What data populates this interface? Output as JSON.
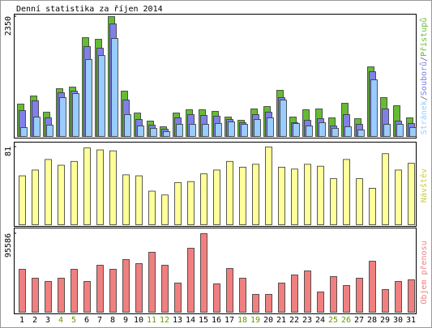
{
  "chart_data": [
    {
      "type": "bar",
      "title": "Denní statistika za říjen 2014",
      "ylim": [
        0,
        2350
      ],
      "yticks": [
        2350
      ],
      "legend_separator": "/",
      "series": [
        {
          "name": "Stránek",
          "color": "#99ccff",
          "values": [
            175,
            380,
            222,
            762,
            841,
            1508,
            1587,
            1921,
            429,
            206,
            159,
            95,
            238,
            238,
            238,
            254,
            286,
            238,
            333,
            365,
            714,
            254,
            206,
            270,
            159,
            190,
            127,
            1111,
            238,
            238,
            175
          ]
        },
        {
          "name": "Souborů",
          "color": "#8080e8",
          "values": [
            508,
            700,
            365,
            857,
            889,
            1762,
            1730,
            2207,
            714,
            333,
            222,
            143,
            365,
            429,
            413,
            397,
            333,
            270,
            429,
            476,
            762,
            270,
            317,
            349,
            206,
            429,
            238,
            1270,
            540,
            302,
            254
          ]
        },
        {
          "name": "Přístupů",
          "color": "#66bb33",
          "values": [
            635,
            794,
            476,
            937,
            968,
            1937,
            1905,
            2350,
            889,
            460,
            302,
            190,
            460,
            524,
            524,
            492,
            381,
            317,
            540,
            587,
            905,
            381,
            524,
            540,
            365,
            651,
            349,
            1365,
            762,
            603,
            365
          ]
        }
      ]
    },
    {
      "type": "bar",
      "ylim": [
        0,
        81
      ],
      "yticks": [
        81
      ],
      "series": [
        {
          "name": "Návštěv",
          "color": "#ffff99",
          "label_color": "#cccc44",
          "values": [
            51,
            57,
            68,
            62,
            66,
            80,
            78,
            77,
            52,
            51,
            35,
            31,
            44,
            45,
            53,
            57,
            66,
            60,
            63,
            81,
            60,
            58,
            63,
            61,
            48,
            68,
            48,
            38,
            74,
            57,
            64
          ]
        }
      ]
    },
    {
      "type": "bar",
      "ylim": [
        0,
        95586
      ],
      "yticks": [
        95586
      ],
      "series": [
        {
          "name": "Objem přenosu",
          "color": "#f08080",
          "label_color": "#f08080",
          "values": [
            52226,
            41387,
            37445,
            41387,
            52226,
            37445,
            57153,
            52226,
            64051,
            59124,
            72920,
            57153,
            35474,
            77847,
            95586,
            34489,
            53212,
            41387,
            21679,
            21679,
            35474,
            45329,
            50255,
            24635,
            43358,
            32518,
            41387,
            62081,
            27591,
            37445,
            39416
          ]
        }
      ],
      "categories": [
        "1",
        "2",
        "3",
        "4",
        "5",
        "6",
        "7",
        "8",
        "9",
        "10",
        "11",
        "12",
        "13",
        "14",
        "15",
        "16",
        "17",
        "18",
        "19",
        "20",
        "21",
        "22",
        "23",
        "24",
        "25",
        "26",
        "27",
        "28",
        "29",
        "30",
        "31"
      ],
      "category_colors": [
        "#000",
        "#000",
        "#000",
        "#669900",
        "#669900",
        "#000",
        "#000",
        "#000",
        "#000",
        "#000",
        "#669900",
        "#669900",
        "#000",
        "#000",
        "#000",
        "#000",
        "#000",
        "#669900",
        "#669900",
        "#000",
        "#000",
        "#000",
        "#000",
        "#000",
        "#669900",
        "#669900",
        "#000",
        "#000",
        "#000",
        "#000",
        "#000"
      ]
    }
  ]
}
